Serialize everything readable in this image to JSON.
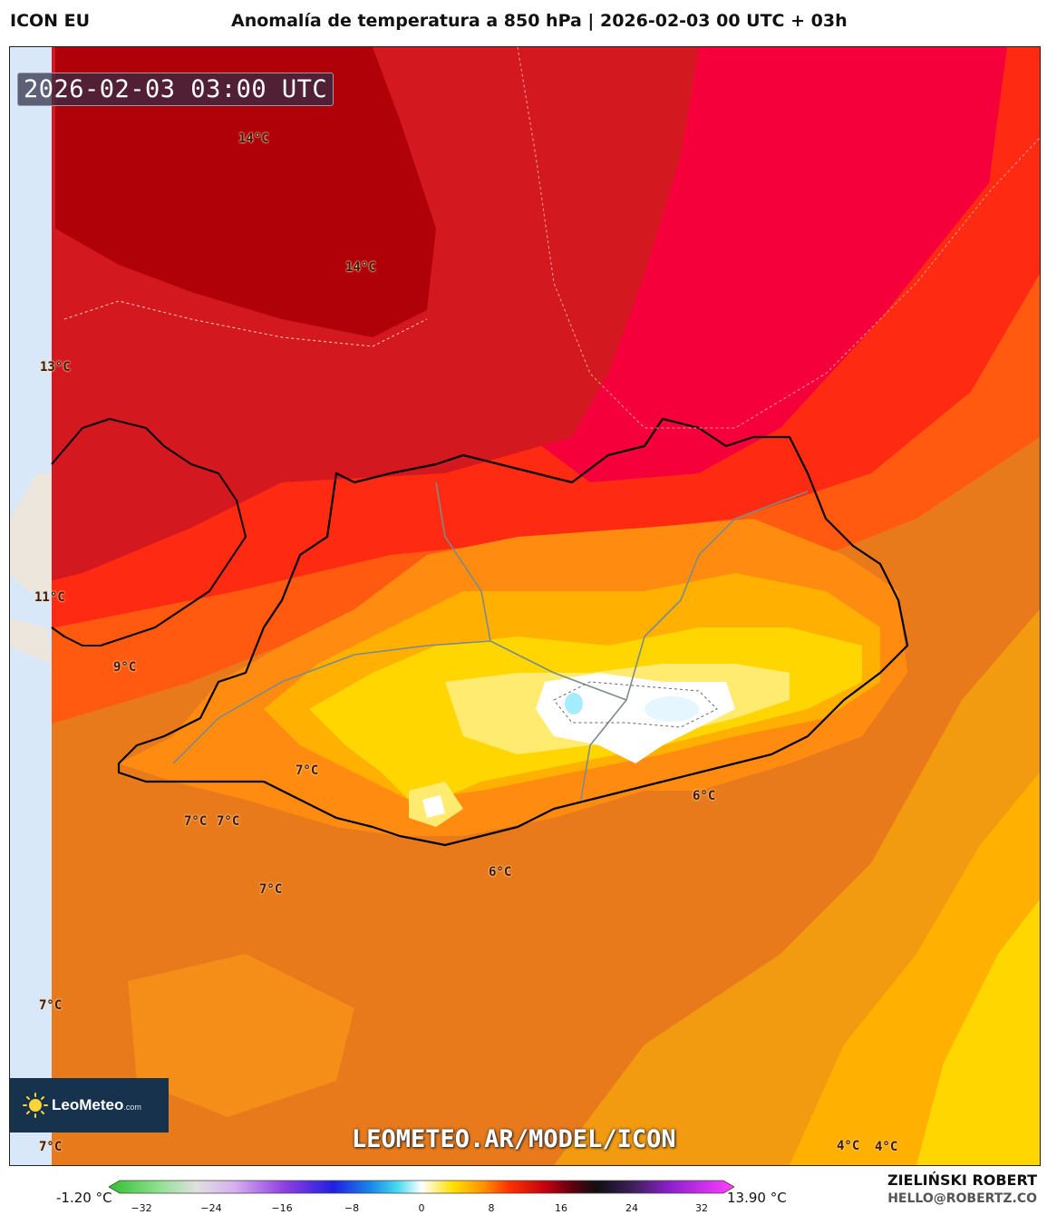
{
  "header": {
    "model": "ICON EU",
    "title": "Anomalía de temperatura a 850 hPa | 2026-02-03 00 UTC + 03h"
  },
  "map": {
    "valid_time": "2026-02-03 03:00 UTC",
    "labels": [
      "14°C",
      "14°C",
      "13°C",
      "11°C",
      "9°C",
      "7°C",
      "7°C",
      "7°C",
      "7°C",
      "6°C",
      "6°C",
      "7°C",
      "7°C",
      "4°C",
      "4°C"
    ],
    "logo_text": "LeoMeteo",
    "logo_suffix": ".com",
    "url": "LEOMETEO.AR/MODEL/ICON",
    "colors": {
      "deep_red": "#b00008",
      "red": "#d41820",
      "magenta_red": "#f5003a",
      "red_orange": "#ff2a12",
      "orange": "#ff6a10",
      "light_orange": "#ff8c10",
      "amber": "#ffb000",
      "yellow": "#ffd600",
      "pale_yellow": "#ffeb70",
      "white": "#ffffff",
      "ice": "#c8f0ff",
      "sea_ice": "#d9e8f8"
    }
  },
  "colorbar": {
    "min_label": "-1.20 °C",
    "max_label": "13.90 °C",
    "ticks": [
      "−32",
      "−24",
      "−16",
      "−8",
      "0",
      "8",
      "16",
      "24",
      "32"
    ]
  },
  "credits": {
    "author": "ZIELIŃSKI ROBERT",
    "email": "HELLO@ROBERTZ.CO"
  }
}
